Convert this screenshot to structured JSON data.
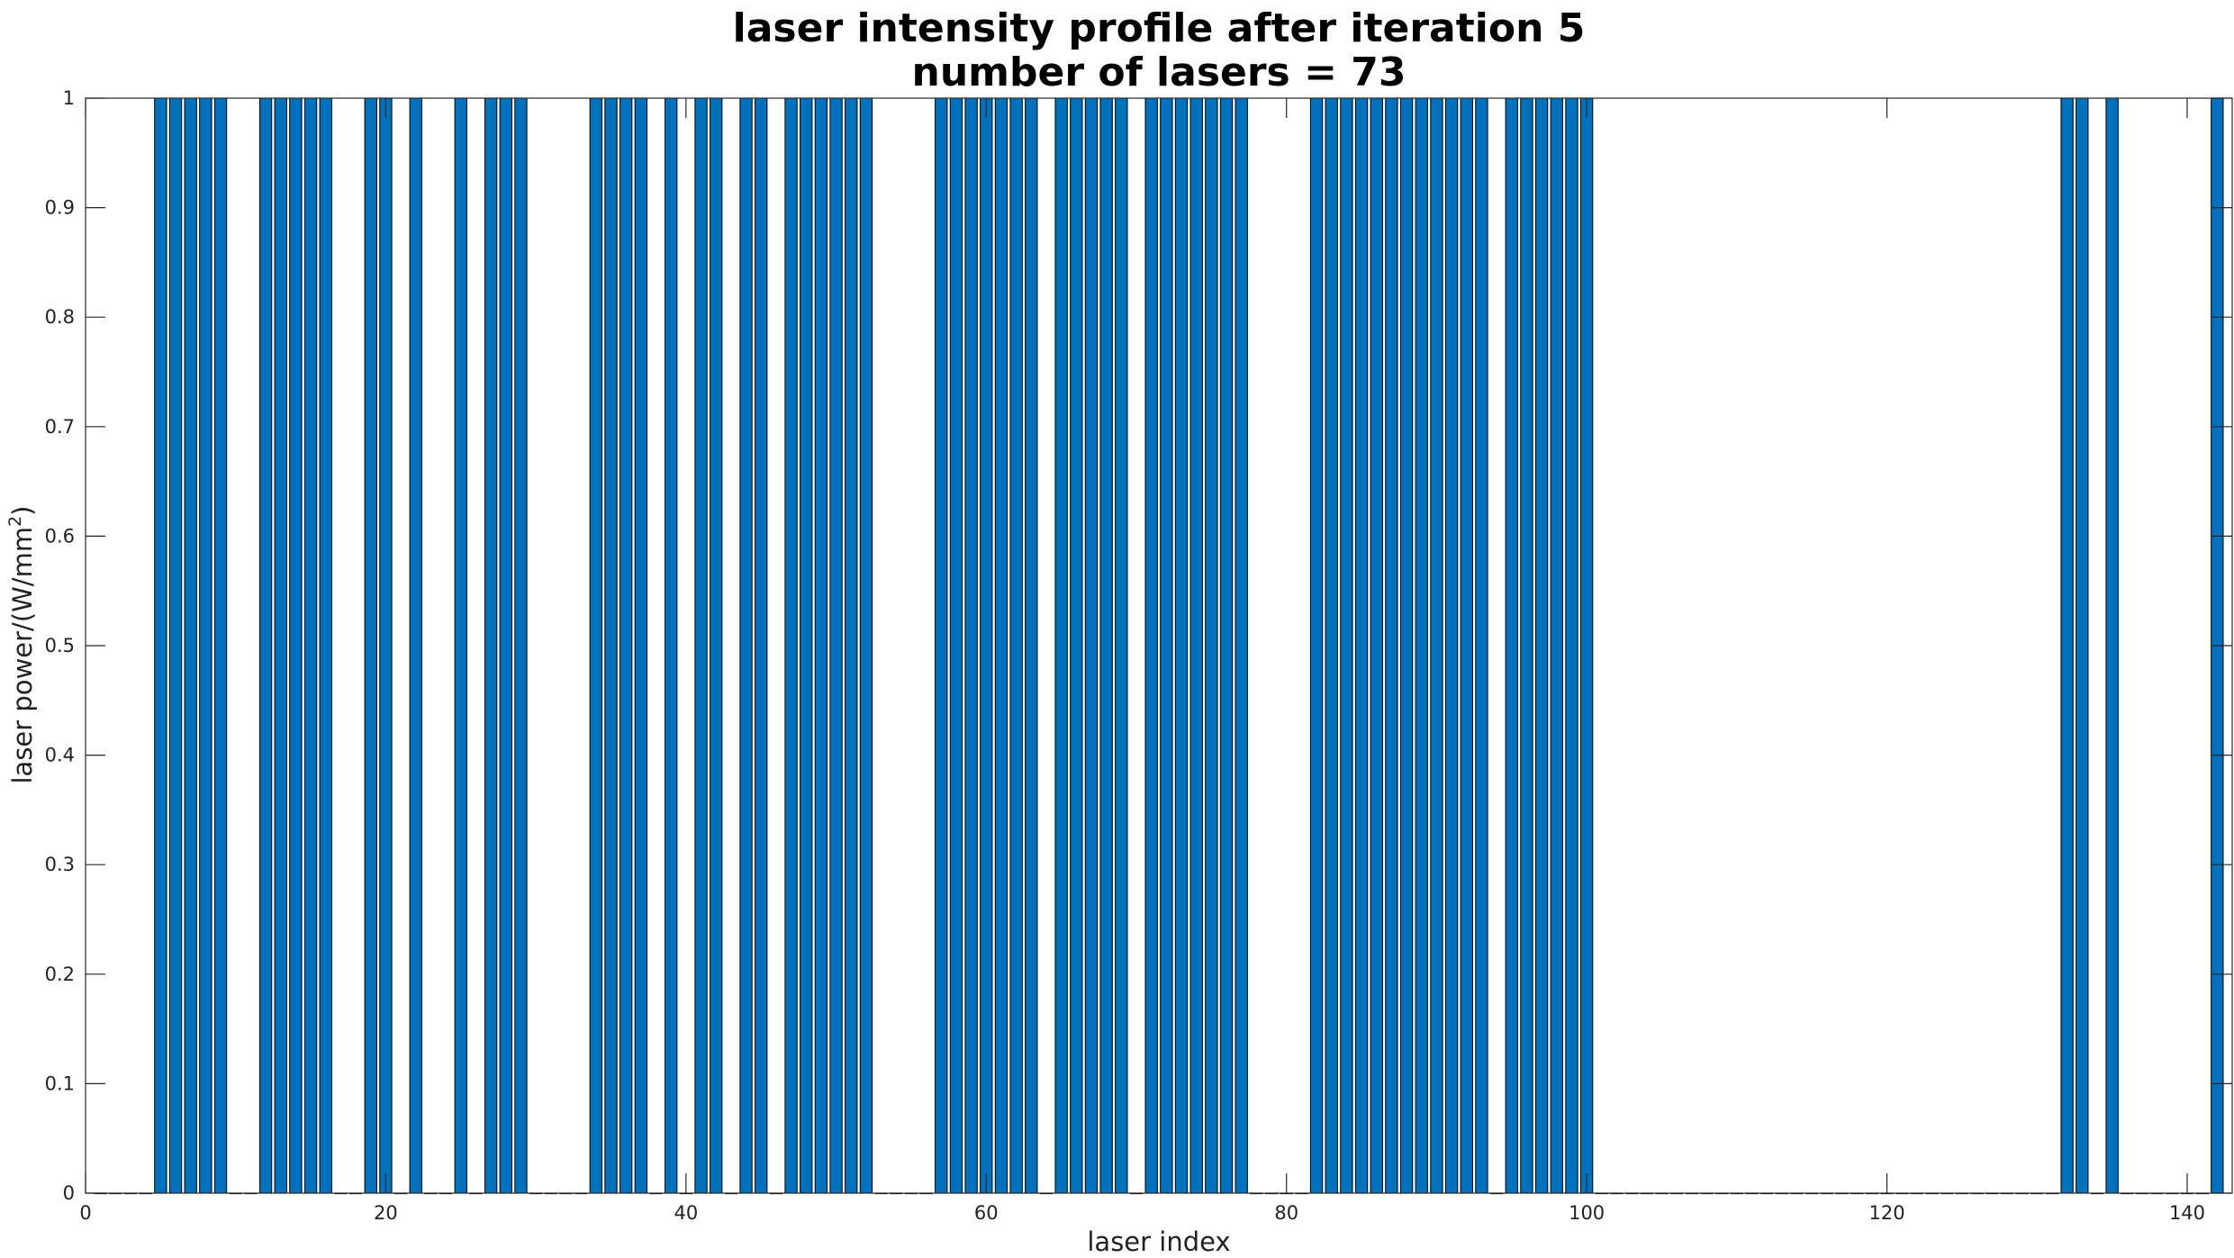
{
  "chart_data": {
    "type": "bar",
    "title": "laser intensity profile after iteration 5",
    "subtitle": "number of lasers = 73",
    "xlabel": "laser index",
    "ylabel": "laser power/(W/mm²)",
    "xlim": [
      0,
      143
    ],
    "ylim": [
      0,
      1
    ],
    "xticks": [
      0,
      20,
      40,
      60,
      80,
      100,
      120,
      140
    ],
    "yticks": [
      0,
      0.1,
      0.2,
      0.3,
      0.4,
      0.5,
      0.6,
      0.7,
      0.8,
      0.9,
      1
    ],
    "grid": false,
    "legend": "none",
    "bar_color": "#0072BD",
    "bar_edge_color": "#000000",
    "active_indices": [
      5,
      6,
      7,
      8,
      9,
      12,
      13,
      14,
      15,
      16,
      19,
      20,
      22,
      25,
      27,
      28,
      29,
      34,
      35,
      36,
      37,
      39,
      41,
      42,
      44,
      45,
      47,
      48,
      49,
      50,
      51,
      52,
      57,
      58,
      59,
      60,
      61,
      62,
      63,
      65,
      66,
      67,
      68,
      69,
      71,
      72,
      73,
      74,
      75,
      76,
      77,
      82,
      83,
      84,
      85,
      86,
      87,
      88,
      89,
      90,
      91,
      92,
      93,
      95,
      96,
      97,
      98,
      99,
      100,
      132,
      133,
      135,
      142
    ],
    "active_value": 1
  }
}
